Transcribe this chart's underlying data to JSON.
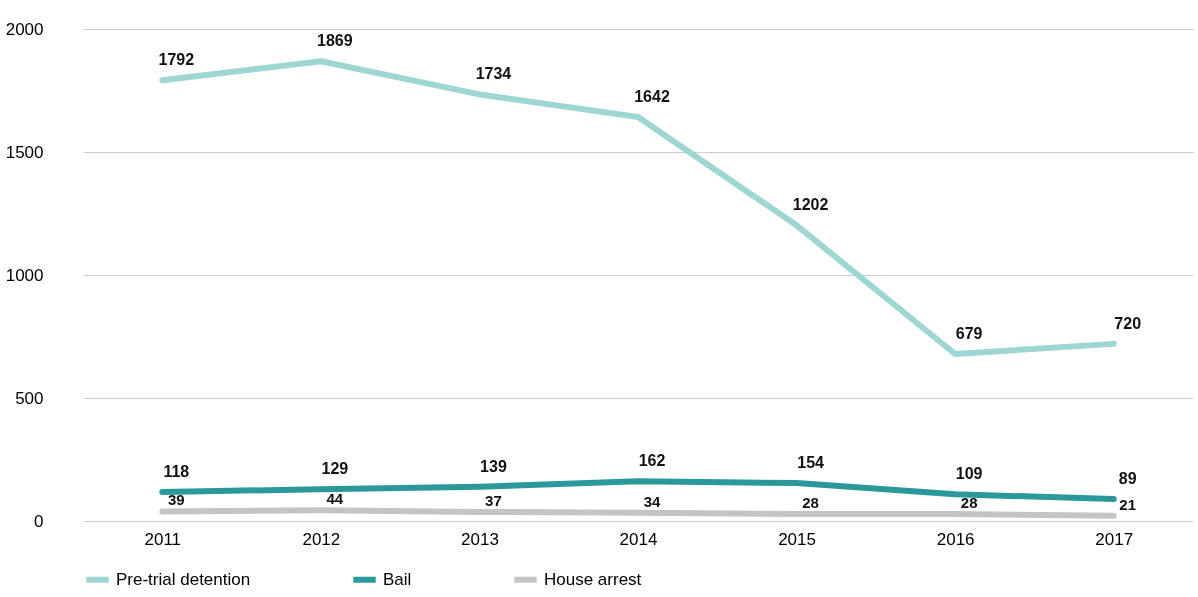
{
  "chart_data": {
    "type": "line",
    "categories": [
      "2011",
      "2012",
      "2013",
      "2014",
      "2015",
      "2016",
      "2017"
    ],
    "series": [
      {
        "name": "Pre-trial detention",
        "color": "#9dd6d3",
        "values": [
          1792,
          1869,
          1734,
          1642,
          1202,
          679,
          720
        ]
      },
      {
        "name": "Bail",
        "color": "#2b9999",
        "values": [
          118,
          129,
          139,
          162,
          154,
          109,
          89
        ]
      },
      {
        "name": "House arrest",
        "color": "#c4c4c4",
        "values": [
          39,
          44,
          37,
          34,
          28,
          28,
          21
        ]
      }
    ],
    "ylim": [
      0,
      2000
    ],
    "yticks": [
      0,
      500,
      1000,
      1500,
      2000
    ],
    "grid": "y",
    "legend": "bottom",
    "data_labels": true,
    "marker": "none",
    "line_style": "solid"
  }
}
